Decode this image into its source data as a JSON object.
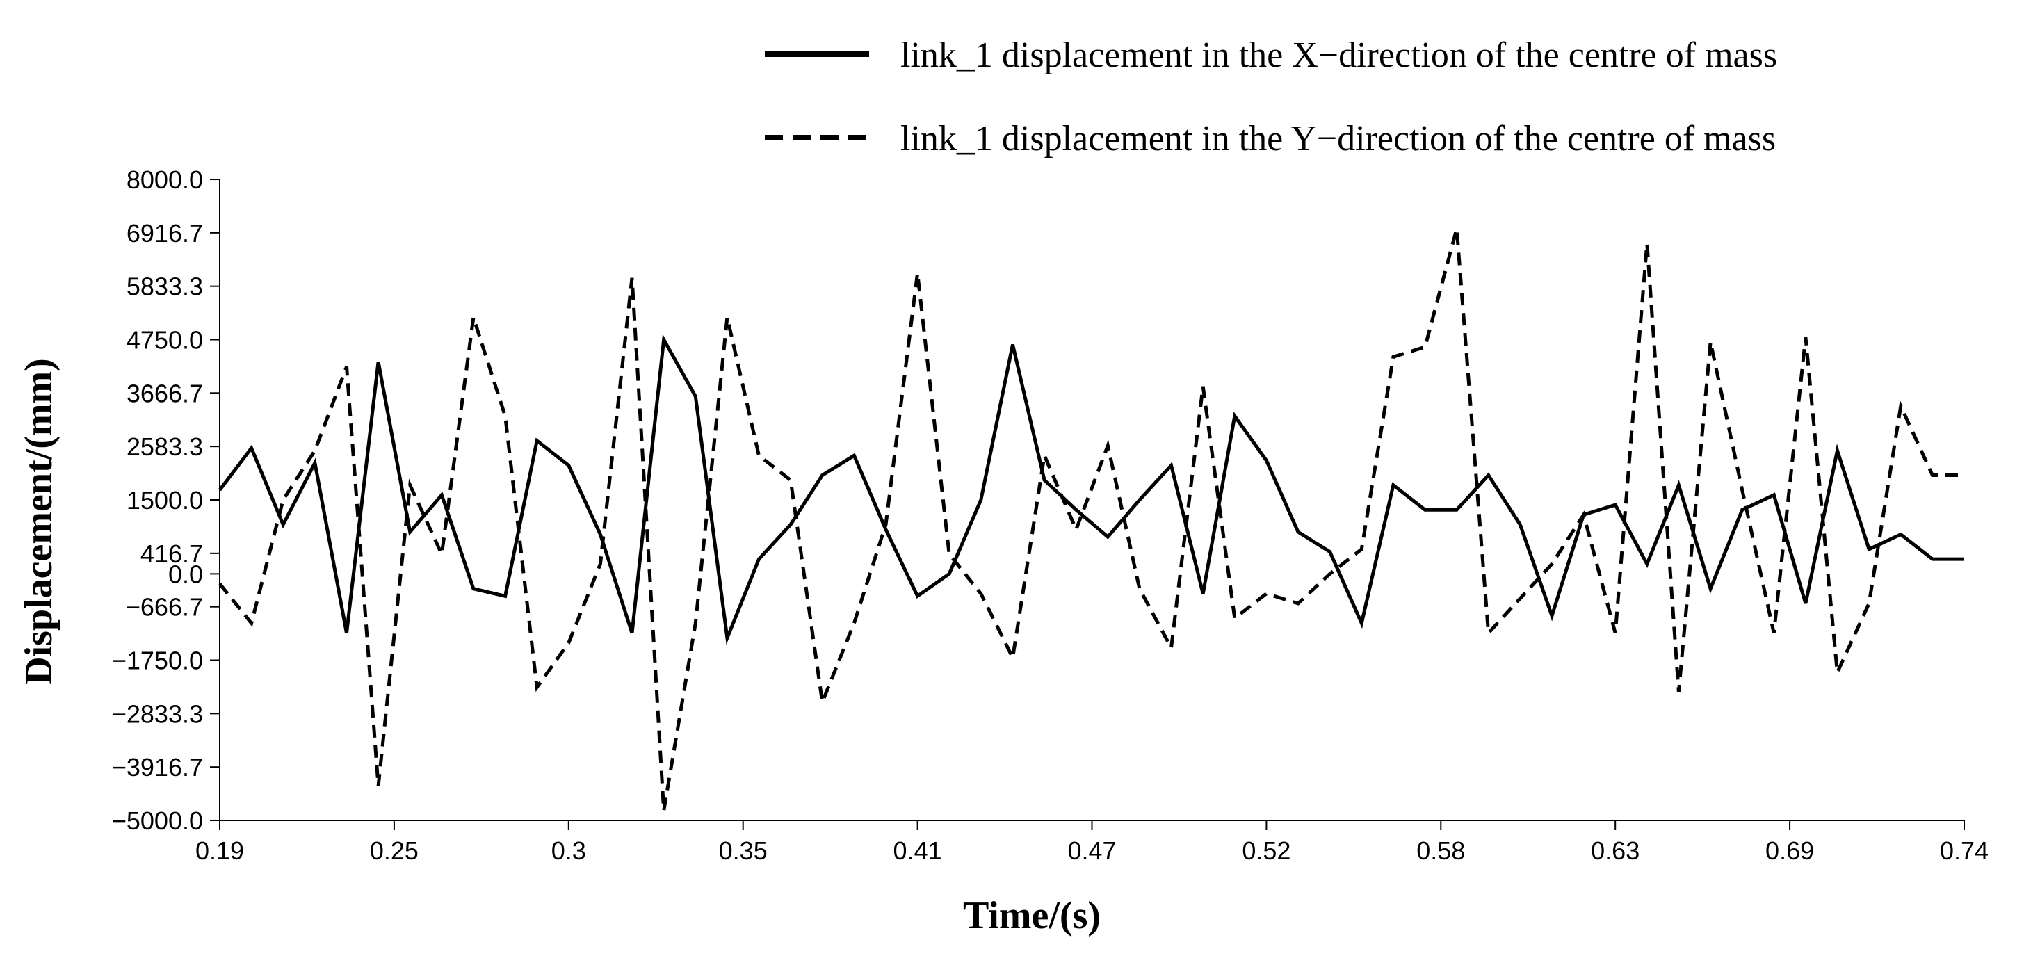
{
  "chart_data": {
    "type": "line",
    "title": "",
    "xlabel": "Time/(s)",
    "ylabel": "Displacement/(mm)",
    "xlim": [
      0.19,
      0.74
    ],
    "ylim": [
      -5000.0,
      8000.0
    ],
    "x_ticks": [
      "0.19",
      "0.25",
      "0.3",
      "0.35",
      "0.41",
      "0.47",
      "0.52",
      "0.58",
      "0.63",
      "0.69",
      "0.74"
    ],
    "y_ticks": [
      "8000.0",
      "6916.7",
      "5833.3",
      "4750.0",
      "3666.7",
      "2583.3",
      "1500.0",
      "416.7",
      "0.0",
      "-666.7",
      "-1750.0",
      "-2833.3",
      "-3916.7",
      "-5000.0"
    ],
    "legend_position": "top-right",
    "grid": false,
    "series": [
      {
        "name": "link_1 displacement in the X−direction of the centre of mass",
        "style": "solid",
        "color": "#000000",
        "x": [
          0.19,
          0.2,
          0.21,
          0.22,
          0.23,
          0.24,
          0.25,
          0.26,
          0.27,
          0.28,
          0.29,
          0.3,
          0.31,
          0.32,
          0.33,
          0.34,
          0.35,
          0.36,
          0.37,
          0.38,
          0.39,
          0.4,
          0.41,
          0.42,
          0.43,
          0.44,
          0.45,
          0.46,
          0.47,
          0.48,
          0.49,
          0.5,
          0.51,
          0.52,
          0.53,
          0.54,
          0.55,
          0.56,
          0.57,
          0.58,
          0.59,
          0.6,
          0.61,
          0.62,
          0.63,
          0.64,
          0.65,
          0.66,
          0.67,
          0.68,
          0.69,
          0.7,
          0.71,
          0.72,
          0.73,
          0.74
        ],
        "values": [
          1700,
          2550,
          1000,
          2250,
          -1200,
          4300,
          850,
          1600,
          -300,
          -450,
          2700,
          2200,
          800,
          -1200,
          4750,
          3600,
          -1300,
          300,
          1000,
          2000,
          2400,
          900,
          -450,
          0,
          1500,
          4650,
          1900,
          1300,
          750,
          1500,
          2200,
          -400,
          3200,
          2300,
          850,
          450,
          -1000,
          1800,
          1300,
          1300,
          2000,
          1000,
          -850,
          1200,
          1400,
          200,
          1800,
          -300,
          1300,
          1600,
          -600,
          2500,
          500,
          800,
          300,
          300
        ]
      },
      {
        "name": "link_1 displacement in the Y−direction of the centre of mass",
        "style": "dashed",
        "color": "#000000",
        "x": [
          0.19,
          0.2,
          0.21,
          0.22,
          0.23,
          0.24,
          0.25,
          0.26,
          0.27,
          0.28,
          0.29,
          0.3,
          0.31,
          0.32,
          0.33,
          0.34,
          0.35,
          0.36,
          0.37,
          0.38,
          0.39,
          0.4,
          0.41,
          0.42,
          0.43,
          0.44,
          0.45,
          0.46,
          0.47,
          0.48,
          0.49,
          0.5,
          0.51,
          0.52,
          0.53,
          0.54,
          0.55,
          0.56,
          0.57,
          0.58,
          0.59,
          0.6,
          0.61,
          0.62,
          0.63,
          0.64,
          0.65,
          0.66,
          0.67,
          0.68,
          0.69,
          0.7,
          0.71,
          0.72,
          0.73,
          0.74
        ],
        "values": [
          -200,
          -1000,
          1500,
          2500,
          4200,
          -4300,
          1800,
          400,
          5200,
          3200,
          -2300,
          -1400,
          200,
          6000,
          -4800,
          -1000,
          5200,
          2400,
          1900,
          -2600,
          -1000,
          1000,
          6100,
          400,
          -400,
          -1700,
          2400,
          900,
          2600,
          -300,
          -1500,
          3800,
          -900,
          -400,
          -600,
          0,
          500,
          4400,
          4600,
          7000,
          -1200,
          -500,
          200,
          1200,
          -1200,
          6700,
          -2400,
          4700,
          1700,
          -1200,
          4800,
          -2000,
          -600,
          3400,
          2000,
          2000
        ]
      }
    ]
  }
}
